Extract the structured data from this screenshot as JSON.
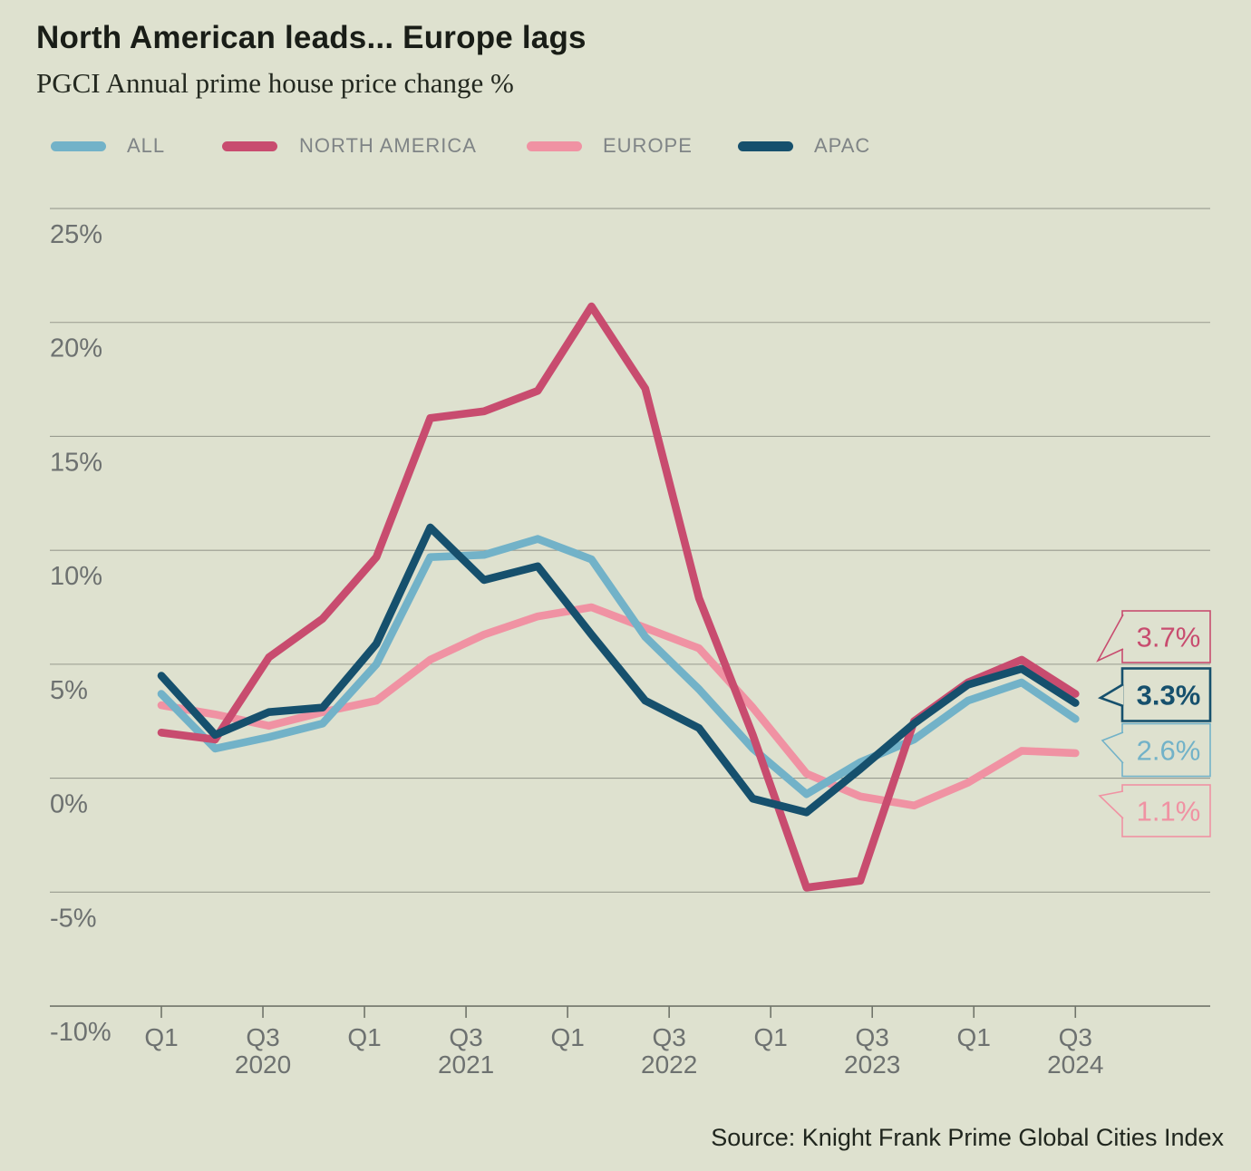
{
  "header": {
    "title": "North American leads... Europe lags",
    "subtitle": "PGCI Annual prime house price change %"
  },
  "legend": {
    "items": [
      {
        "label": "ALL",
        "color": "#72b2c8"
      },
      {
        "label": "NORTH AMERICA",
        "color": "#c84c6f"
      },
      {
        "label": "EUROPE",
        "color": "#f092a3"
      },
      {
        "label": "APAC",
        "color": "#16506d"
      }
    ]
  },
  "source": "Source: Knight Frank Prime Global Cities Index",
  "colors": {
    "background": "#dee1cf",
    "gridline": "#989b8f",
    "axis_line": "#70746a",
    "axis_text": "#6d7170",
    "title_text": "#191d17",
    "legend_text": "#7f8486"
  },
  "chart_data": {
    "type": "line",
    "title": "North American leads... Europe lags",
    "subtitle": "PGCI Annual prime house price change %",
    "x": [
      "Q1 2020",
      "Q2 2020",
      "Q3 2020",
      "Q4 2020",
      "Q1 2021",
      "Q2 2021",
      "Q3 2021",
      "Q4 2021",
      "Q1 2022",
      "Q2 2022",
      "Q3 2022",
      "Q4 2022",
      "Q1 2023",
      "Q2 2023",
      "Q3 2023",
      "Q4 2023",
      "Q1 2024",
      "Q3 2024"
    ],
    "x_axis_ticks": [
      {
        "label": "Q1",
        "year": ""
      },
      {
        "label": "Q3",
        "year": "2020"
      },
      {
        "label": "Q1",
        "year": ""
      },
      {
        "label": "Q3",
        "year": "2021"
      },
      {
        "label": "Q1",
        "year": ""
      },
      {
        "label": "Q3",
        "year": "2022"
      },
      {
        "label": "Q1",
        "year": ""
      },
      {
        "label": "Q3",
        "year": "2023"
      },
      {
        "label": "Q1",
        "year": ""
      },
      {
        "label": "Q3",
        "year": "2024"
      }
    ],
    "ylabel": "",
    "xlabel": "",
    "ylim": [
      -10,
      25
    ],
    "y_ticks": [
      25,
      20,
      15,
      10,
      5,
      0,
      -5,
      -10
    ],
    "y_tick_labels": [
      "25%",
      "20%",
      "15%",
      "10%",
      "5%",
      "0%",
      "-5%",
      "-10%"
    ],
    "grid": "horizontal",
    "legend_position": "top",
    "series": [
      {
        "name": "EUROPE",
        "id": "europe",
        "color": "#f092a3",
        "values": [
          3.2,
          2.8,
          2.3,
          2.9,
          3.4,
          5.2,
          6.3,
          7.1,
          7.5,
          6.6,
          5.7,
          3.1,
          0.2,
          -0.8,
          -1.2,
          -0.2,
          1.2,
          1.1
        ],
        "end_label": "1.1%"
      },
      {
        "name": "ALL",
        "id": "all",
        "color": "#72b2c8",
        "values": [
          3.7,
          1.3,
          1.8,
          2.4,
          5.0,
          9.7,
          9.8,
          10.5,
          9.6,
          6.2,
          3.9,
          1.3,
          -0.7,
          0.7,
          1.7,
          3.4,
          4.2,
          2.6
        ],
        "end_label": "2.6%"
      },
      {
        "name": "NORTH AMERICA",
        "id": "na",
        "color": "#c84c6f",
        "values": [
          2.0,
          1.7,
          5.3,
          7.0,
          9.7,
          15.8,
          16.1,
          17.0,
          20.7,
          17.1,
          7.9,
          1.9,
          -4.8,
          -4.5,
          2.5,
          4.2,
          5.2,
          3.7
        ],
        "end_label": "3.7%"
      },
      {
        "name": "APAC",
        "id": "apac",
        "color": "#16506d",
        "values": [
          4.5,
          1.9,
          2.9,
          3.1,
          5.9,
          11.0,
          8.7,
          9.3,
          6.3,
          3.4,
          2.2,
          -0.9,
          -1.5,
          0.4,
          2.4,
          4.1,
          4.8,
          3.3
        ],
        "end_label": "3.3%"
      }
    ],
    "callouts": [
      {
        "series_id": "na",
        "label": "3.7%",
        "color": "#c84c6f",
        "bold": false
      },
      {
        "series_id": "apac",
        "label": "3.3%",
        "color": "#16506d",
        "bold": true
      },
      {
        "series_id": "all",
        "label": "2.6%",
        "color": "#72b2c8",
        "bold": false
      },
      {
        "series_id": "europe",
        "label": "1.1%",
        "color": "#f092a3",
        "bold": false
      }
    ]
  }
}
